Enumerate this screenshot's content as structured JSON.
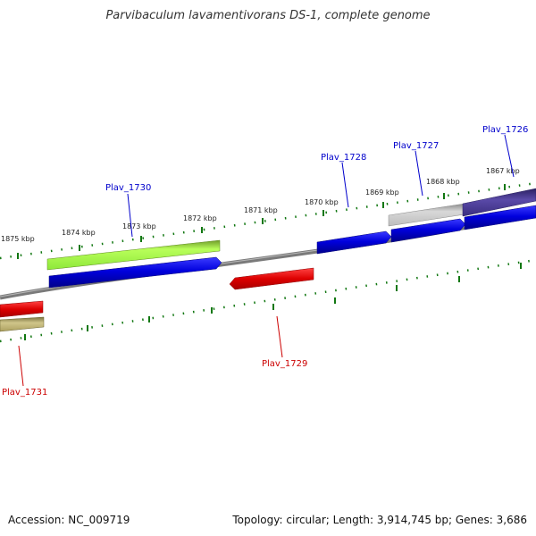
{
  "title": "Parvibaculum lavamentivorans DS-1, complete genome",
  "footer": {
    "accession": "Accession: NC_009719",
    "summary": "Topology: circular; Length: 3,914,745 bp; Genes: 3,686"
  },
  "ticks": [
    {
      "label": "1875 kbp",
      "kbp": 1875
    },
    {
      "label": "1874 kbp",
      "kbp": 1874
    },
    {
      "label": "1873 kbp",
      "kbp": 1873
    },
    {
      "label": "1872 kbp",
      "kbp": 1872
    },
    {
      "label": "1871 kbp",
      "kbp": 1871
    },
    {
      "label": "1870 kbp",
      "kbp": 1870
    },
    {
      "label": "1869 kbp",
      "kbp": 1869
    },
    {
      "label": "1868 kbp",
      "kbp": 1868
    },
    {
      "label": "1867 kbp",
      "kbp": 1867
    }
  ],
  "genes": [
    {
      "name": "Plav_1730",
      "strand": "+",
      "color": "#0000cc"
    },
    {
      "name": "Plav_1728",
      "strand": "+",
      "color": "#0000cc"
    },
    {
      "name": "Plav_1727",
      "strand": "+",
      "color": "#0000cc"
    },
    {
      "name": "Plav_1726",
      "strand": "+",
      "color": "#0000cc"
    },
    {
      "name": "Plav_1729",
      "strand": "-",
      "color": "#cc0000"
    },
    {
      "name": "Plav_1731",
      "strand": "-",
      "color": "#cc0000"
    }
  ],
  "features": {
    "green_bar_color": "#99ff33",
    "gray_bar_color": "#b3b3b3",
    "purple_bar_color": "#4d3d99",
    "olive_bar_color": "#b3a866",
    "backbone_color": "#777777",
    "tick_color": "#117711"
  }
}
